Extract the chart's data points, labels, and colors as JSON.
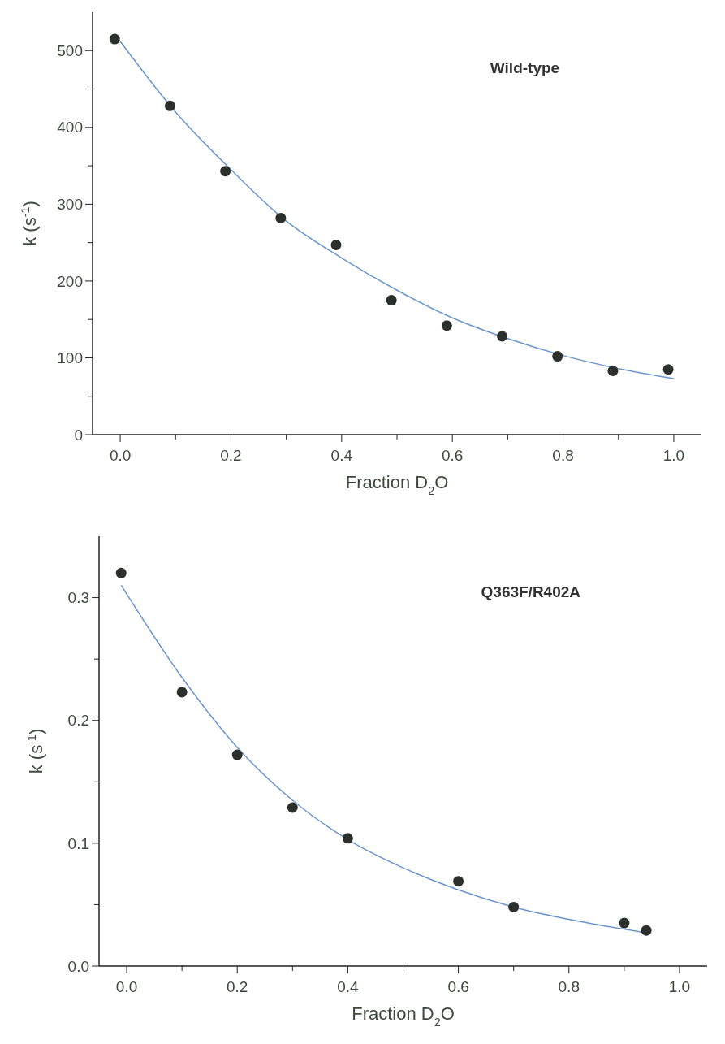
{
  "chart_data": [
    {
      "type": "scatter",
      "xlabel": "Fraction D$_{2}$O",
      "ylabel": "k (s$^{-1}$)",
      "annotations": [
        "Wild-type"
      ],
      "marker": "circle",
      "xlim": [
        -0.05,
        1.05
      ],
      "ylim": [
        0,
        550
      ],
      "xticks": [
        {
          "value": 0,
          "label": "0.0"
        },
        {
          "value": 0.1,
          "label": null
        },
        {
          "value": 0.2,
          "label": "0.2"
        },
        {
          "value": 0.3,
          "label": null
        },
        {
          "value": 0.4,
          "label": "0.4"
        },
        {
          "value": 0.5,
          "label": null
        },
        {
          "value": 0.6,
          "label": "0.6"
        },
        {
          "value": 0.7,
          "label": null
        },
        {
          "value": 0.8,
          "label": "0.8"
        },
        {
          "value": 0.9,
          "label": null
        },
        {
          "value": 1,
          "label": "1.0"
        }
      ],
      "yticks": [
        0,
        {
          "value": 50,
          "label": null
        },
        100,
        {
          "value": 150,
          "label": null
        },
        200,
        {
          "value": 250,
          "label": null
        },
        300,
        {
          "value": 350,
          "label": null
        },
        400,
        {
          "value": 450,
          "label": null
        },
        500
      ],
      "series": [
        {
          "color": "#2b302c",
          "x": [
            -0.01,
            0.09,
            0.19,
            0.29,
            0.39,
            0.49,
            0.59,
            0.69,
            0.79,
            0.89,
            0.99
          ],
          "values": [
            515,
            428,
            343,
            282,
            247,
            175,
            142,
            128,
            102,
            83,
            85
          ]
        },
        {
          "type": "line",
          "color": "#6a95cf",
          "marker": "none",
          "x": [
            0,
            0.1,
            0.2,
            0.3,
            0.4,
            0.5,
            0.6,
            0.7,
            0.8,
            0.9,
            1.0
          ],
          "values": [
            512,
            420,
            345,
            278,
            230,
            188,
            152,
            125,
            103,
            86,
            73
          ]
        }
      ]
    },
    {
      "type": "scatter",
      "xlabel": "Fraction D$_{2}$O",
      "ylabel": "k (s$^{-1}$)",
      "annotations": [
        "Q363F/R402A"
      ],
      "marker": "circle",
      "xlim": [
        -0.05,
        1.05
      ],
      "ylim": [
        0,
        0.35
      ],
      "xticks": [
        {
          "value": 0,
          "label": "0.0"
        },
        {
          "value": 0.1,
          "label": null
        },
        {
          "value": 0.2,
          "label": "0.2"
        },
        {
          "value": 0.3,
          "label": null
        },
        {
          "value": 0.4,
          "label": "0.4"
        },
        {
          "value": 0.5,
          "label": null
        },
        {
          "value": 0.6,
          "label": "0.6"
        },
        {
          "value": 0.7,
          "label": null
        },
        {
          "value": 0.8,
          "label": "0.8"
        },
        {
          "value": 0.9,
          "label": null
        },
        {
          "value": 1,
          "label": "1.0"
        }
      ],
      "yticks": [
        {
          "value": 0,
          "label": "0.0"
        },
        {
          "value": 0.05,
          "label": null
        },
        0.1,
        {
          "value": 0.15,
          "label": null
        },
        0.2,
        {
          "value": 0.25,
          "label": null
        },
        0.3
      ],
      "series": [
        {
          "color": "#2b302c",
          "x": [
            -0.01,
            0.1,
            0.2,
            0.3,
            0.4,
            0.6,
            0.7,
            0.9,
            0.94
          ],
          "values": [
            0.32,
            0.223,
            0.172,
            0.129,
            0.104,
            0.069,
            0.048,
            0.035,
            0.029
          ]
        },
        {
          "type": "line",
          "color": "#6a95cf",
          "marker": "none",
          "x": [
            -0.01,
            0.1,
            0.2,
            0.3,
            0.4,
            0.5,
            0.6,
            0.7,
            0.8,
            0.94
          ],
          "values": [
            0.31,
            0.235,
            0.178,
            0.135,
            0.103,
            0.08,
            0.062,
            0.048,
            0.038,
            0.027
          ]
        }
      ]
    }
  ]
}
